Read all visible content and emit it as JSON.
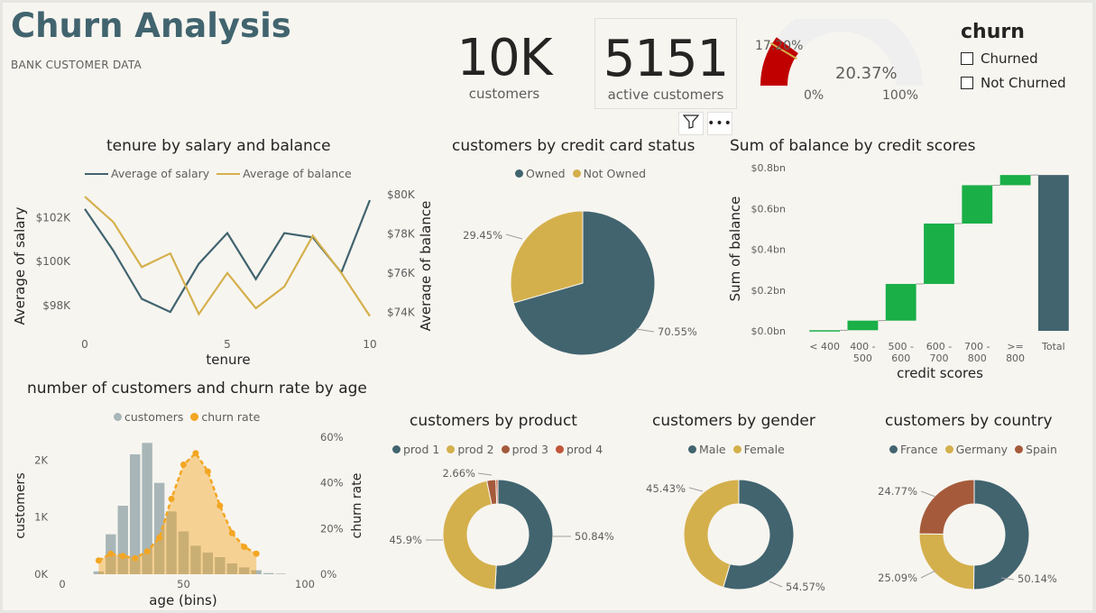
{
  "header": {
    "title": "Churn Analysis",
    "subtitle": "BANK CUSTOMER DATA"
  },
  "cards": [
    {
      "value": "10K",
      "label": "customers"
    },
    {
      "value": "5151",
      "label": "active customers"
    }
  ],
  "gauge": {
    "target_label": "17.20%",
    "value_label": "20.37%",
    "min_label": "0%",
    "max_label": "100%",
    "value": 0.2037,
    "target": 0.172
  },
  "slicer": {
    "title": "churn",
    "options": [
      "Churned",
      "Not Churned"
    ]
  },
  "visual_header": {
    "icons": [
      "filter-icon",
      "more-options-icon"
    ]
  },
  "colors": {
    "teal": "#41646f",
    "gold": "#d4b04c",
    "brown": "#a55b3b",
    "orange_red": "#c0563a",
    "green": "#1aaf47",
    "gray_bar": "#a8b6b8",
    "orange": "#f3a623",
    "gauge_red": "#c00000"
  },
  "chart_data": [
    {
      "id": "tenure",
      "type": "line",
      "title": "tenure by salary and balance",
      "xlabel": "tenure",
      "ylabel": "Average of salary",
      "y2label": "Average of balance",
      "x": [
        0,
        1,
        2,
        3,
        4,
        5,
        6,
        7,
        8,
        9,
        10
      ],
      "x_ticks": [
        "0",
        "5",
        "10"
      ],
      "x_tick_values": [
        0,
        5,
        10
      ],
      "y_ticks": [
        "$98K",
        "$100K",
        "$102K"
      ],
      "y_tick_values": [
        98000,
        100000,
        102000
      ],
      "y2_ticks": [
        "$74K",
        "$76K",
        "$78K",
        "$80K"
      ],
      "y2_tick_values": [
        74000,
        76000,
        78000,
        80000
      ],
      "ylim": [
        96800,
        103500
      ],
      "y2lim": [
        73000,
        80500
      ],
      "series": [
        {
          "name": "Average of salary",
          "axis": "y",
          "color": "#41646f",
          "values": [
            102400,
            100500,
            98300,
            97700,
            99900,
            101300,
            99200,
            101300,
            101100,
            99500,
            102800
          ]
        },
        {
          "name": "Average of balance",
          "axis": "y2",
          "color": "#d4b04c",
          "values": [
            79900,
            78600,
            76300,
            77000,
            73900,
            76000,
            74200,
            75300,
            77900,
            76000,
            73800
          ]
        }
      ]
    },
    {
      "id": "credit_card",
      "type": "pie",
      "title": "customers by credit card status",
      "categories": [
        "Owned",
        "Not Owned"
      ],
      "values": [
        70.55,
        29.45
      ],
      "labels": [
        "70.55%",
        "29.45%"
      ],
      "colors": [
        "#41646f",
        "#d4b04c"
      ]
    },
    {
      "id": "balance_credit",
      "type": "bar",
      "subtype": "waterfall",
      "title": "Sum of balance by credit scores",
      "xlabel": "credit scores",
      "ylabel": "Sum of balance",
      "categories": [
        "< 400",
        "400 - 500",
        "500 - 600",
        "600 - 700",
        "700 - 800",
        ">= 800",
        "Total"
      ],
      "category_lines": [
        [
          "< 400"
        ],
        [
          "400 -",
          "500"
        ],
        [
          "500 -",
          "600"
        ],
        [
          "600 -",
          "700"
        ],
        [
          "700 -",
          "800"
        ],
        [
          ">=",
          "800"
        ],
        [
          "Total"
        ]
      ],
      "values": [
        0.003,
        0.047,
        0.18,
        0.296,
        0.188,
        0.05,
        0.764
      ],
      "y_ticks": [
        "$0.0bn",
        "$0.2bn",
        "$0.4bn",
        "$0.6bn",
        "$0.8bn"
      ],
      "y_tick_values": [
        0,
        0.2,
        0.4,
        0.6,
        0.8
      ],
      "ylim": [
        0,
        0.8
      ]
    },
    {
      "id": "age",
      "type": "bar",
      "subtype": "bar-and-area",
      "title": "number of customers and churn rate by age",
      "xlabel": "age (bins)",
      "ylabel": "customers",
      "y2label": "churn rate",
      "series": [
        {
          "name": "customers",
          "color": "#a8b6b8",
          "x": [
            15,
            20,
            25,
            30,
            35,
            40,
            45,
            50,
            55,
            60,
            65,
            70,
            75,
            80,
            85,
            90
          ],
          "values": [
            50,
            700,
            1200,
            2100,
            2300,
            1600,
            1100,
            750,
            500,
            380,
            300,
            190,
            120,
            70,
            20,
            10
          ]
        },
        {
          "name": "churn rate",
          "color": "#f3a623",
          "x": [
            15,
            20,
            25,
            30,
            35,
            40,
            45,
            50,
            55,
            60,
            65,
            70,
            75,
            80
          ],
          "values": [
            6,
            9,
            8,
            7,
            10,
            16,
            33,
            48,
            53,
            45,
            30,
            18,
            12,
            9
          ]
        }
      ],
      "x_ticks": [
        "0",
        "50",
        "100"
      ],
      "x_tick_values": [
        0,
        50,
        100
      ],
      "xlim": [
        0,
        100
      ],
      "y_ticks": [
        "0K",
        "1K",
        "2K"
      ],
      "y_tick_values": [
        0,
        1000,
        2000
      ],
      "ylim": [
        0,
        2400
      ],
      "y2_ticks": [
        "0%",
        "20%",
        "40%",
        "60%"
      ],
      "y2_tick_values": [
        0,
        20,
        40,
        60
      ],
      "y2lim": [
        0,
        60
      ]
    },
    {
      "id": "product",
      "type": "pie",
      "subtype": "donut",
      "title": "customers by product",
      "categories": [
        "prod 1",
        "prod 2",
        "prod 3",
        "prod 4"
      ],
      "values": [
        50.84,
        45.9,
        2.66,
        0.6
      ],
      "labels": [
        "50.84%",
        "45.9%",
        "2.66%",
        ""
      ],
      "colors": [
        "#41646f",
        "#d4b04c",
        "#a55b3b",
        "#c0563a"
      ]
    },
    {
      "id": "gender",
      "type": "pie",
      "subtype": "donut",
      "title": "customers by gender",
      "categories": [
        "Male",
        "Female"
      ],
      "values": [
        54.57,
        45.43
      ],
      "labels": [
        "54.57%",
        "45.43%"
      ],
      "colors": [
        "#41646f",
        "#d4b04c"
      ]
    },
    {
      "id": "country",
      "type": "pie",
      "subtype": "donut",
      "title": "customers by country",
      "categories": [
        "France",
        "Germany",
        "Spain"
      ],
      "values": [
        50.14,
        25.09,
        24.77
      ],
      "labels": [
        "50.14%",
        "25.09%",
        "24.77%"
      ],
      "colors": [
        "#41646f",
        "#d4b04c",
        "#a55b3b"
      ]
    }
  ]
}
